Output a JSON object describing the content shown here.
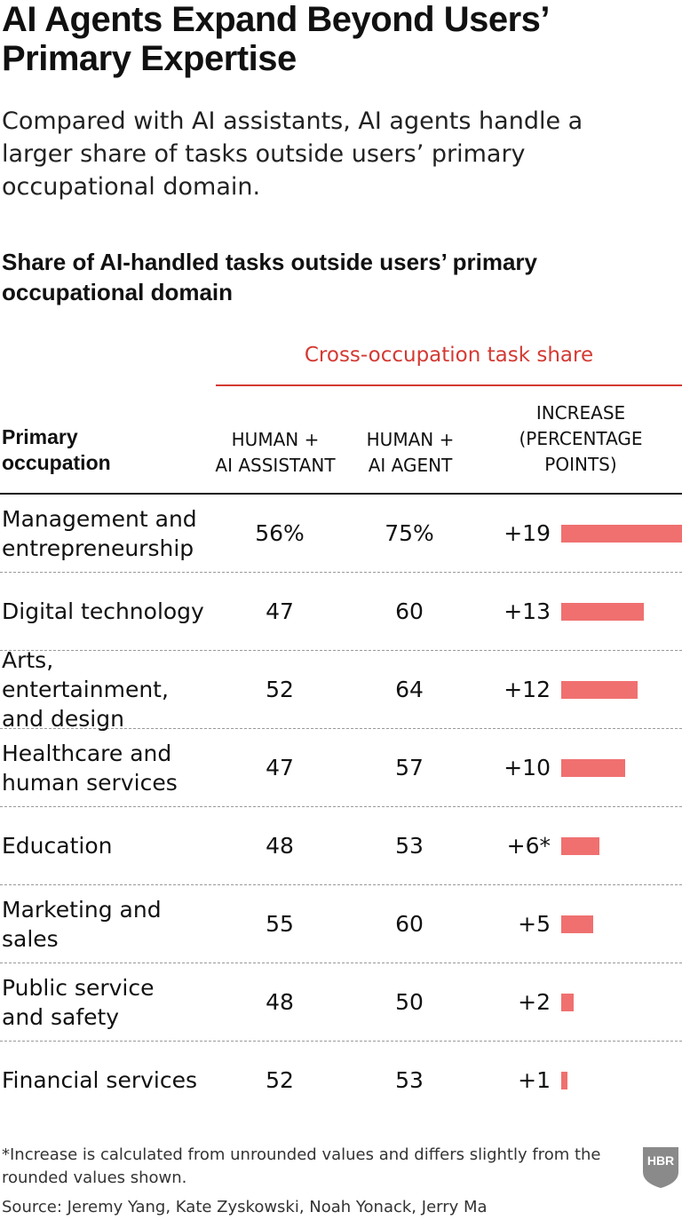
{
  "title": "AI Agents Expand Beyond Users’ Primary Expertise",
  "subtitle": "Compared with AI assistants, AI agents handle a larger share of tasks outside users’ primary occupational domain.",
  "chart_data": {
    "type": "table",
    "title": "Share of AI-handled tasks outside users’ primary occupational domain",
    "group_header": "Cross-occupation task share",
    "columns": {
      "occupation": "Primary occupation",
      "assistant": "HUMAN + AI ASSISTANT",
      "agent": "HUMAN + AI AGENT",
      "increase": "INCREASE (PERCENTAGE POINTS)"
    },
    "bar_max": 19,
    "rows": [
      {
        "occupation": "Management and entrepreneurship",
        "assistant": "56%",
        "agent": "75%",
        "increase_label": "+19",
        "increase": 19
      },
      {
        "occupation": "Digital technology",
        "assistant": "47",
        "agent": "60",
        "increase_label": "+13",
        "increase": 13
      },
      {
        "occupation": "Arts, entertainment, and design",
        "assistant": "52",
        "agent": "64",
        "increase_label": "+12",
        "increase": 12
      },
      {
        "occupation": "Healthcare and human services",
        "assistant": "47",
        "agent": "57",
        "increase_label": "+10",
        "increase": 10
      },
      {
        "occupation": "Education",
        "assistant": "48",
        "agent": "53",
        "increase_label": "+6*",
        "increase": 6
      },
      {
        "occupation": "Marketing and sales",
        "assistant": "55",
        "agent": "60",
        "increase_label": "+5",
        "increase": 5
      },
      {
        "occupation": "Public service and safety",
        "assistant": "48",
        "agent": "50",
        "increase_label": "+2",
        "increase": 2
      },
      {
        "occupation": "Financial services",
        "assistant": "52",
        "agent": "53",
        "increase_label": "+1",
        "increase": 1
      }
    ],
    "bar_color": "#f07070",
    "accent_color": "#d33a33"
  },
  "footnote": "*Increase is calculated from unrounded values and differs slightly from the rounded values shown.",
  "source": "Source: Jeremy Yang, Kate Zyskowski, Noah Yonack, Jerry Ma",
  "logo": {
    "text": "HBR",
    "icon": "hbr-shield-logo"
  }
}
